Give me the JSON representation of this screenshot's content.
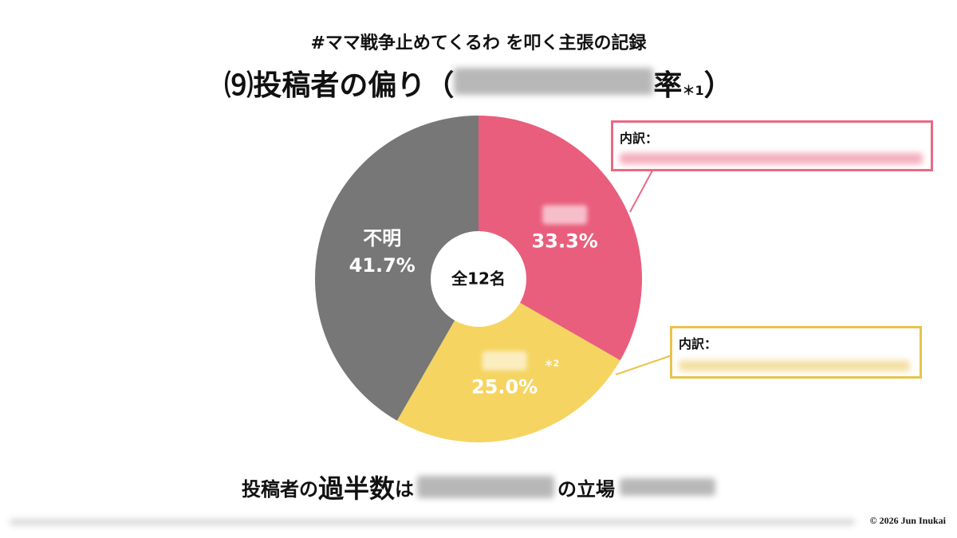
{
  "chart_data": {
    "type": "pie",
    "title": "#ママ戦争止めてくるわ を叩く主張の記録",
    "subtitle": {
      "before": "⑼投稿者の偏り（",
      "after": "率",
      "note": "＊1",
      "close": "）"
    },
    "categories": [
      null,
      null,
      "不明"
    ],
    "series": [
      {
        "colors": [
          "#e95e7c",
          "#f5d461",
          "#777777"
        ],
        "values": [
          33.3,
          25.0,
          41.7
        ],
        "value_labels": [
          "33.3%",
          "25.0%",
          "41.7%"
        ]
      }
    ],
    "center_label": "全12名",
    "annotations": {
      "breakdown_pink": "内訳：",
      "breakdown_yellow": "内訳：",
      "yellow_note": "＊2"
    },
    "conclusion": {
      "a": "投稿者の",
      "b": "過半数",
      "c": "は",
      "d": "の立場"
    },
    "copyright": "© 2026 Jun Inukai"
  }
}
